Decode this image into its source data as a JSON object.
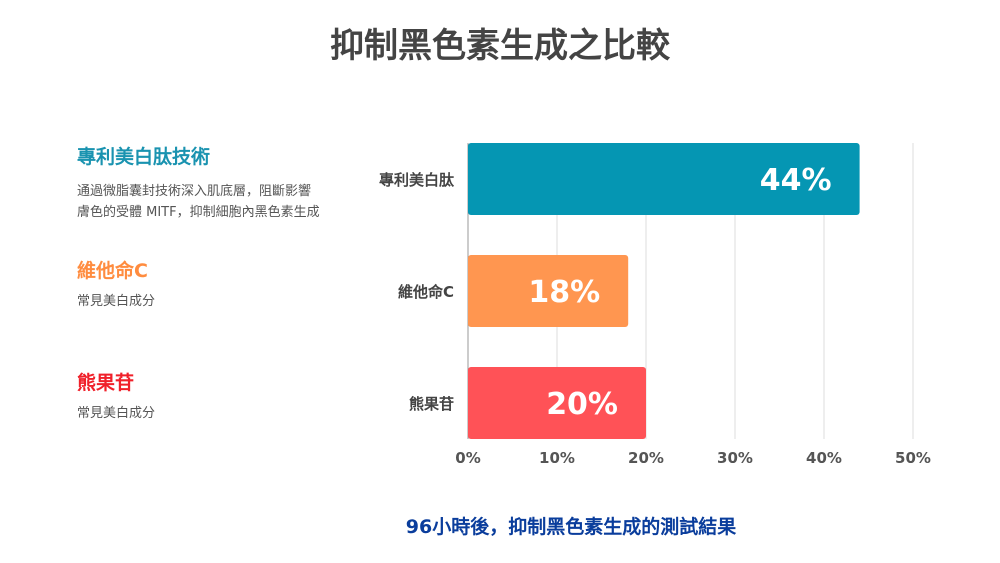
{
  "title": "抑制黑色素生成之比較",
  "legend": [
    {
      "name": "專利美白肽技術",
      "desc1": "通過微脂囊封技術深入肌底層，阻斷影響",
      "desc2": "膚色的受體 MITF，抑制細胞內黑色素生成",
      "color": "#1a93b0"
    },
    {
      "name": "維他命C",
      "desc1": "常見美白成分",
      "desc2": "",
      "color": "#ff8c3f"
    },
    {
      "name": "熊果苷",
      "desc1": "常見美白成分",
      "desc2": "",
      "color": "#f0202a"
    }
  ],
  "subtitle": "96小時後，抑制黑色素生成的測試結果",
  "chart_data": {
    "type": "bar",
    "orientation": "horizontal",
    "categories": [
      "專利美白肽",
      "維他命C",
      "熊果苷"
    ],
    "values": [
      44,
      18,
      20
    ],
    "value_labels": [
      "44%",
      "18%",
      "20%"
    ],
    "colors": [
      "#0596b3",
      "#ff9650",
      "#ff5257"
    ],
    "xlim": [
      0,
      50
    ],
    "xticks": [
      "0%",
      "10%",
      "20%",
      "30%",
      "40%",
      "50%"
    ],
    "grid": true
  }
}
